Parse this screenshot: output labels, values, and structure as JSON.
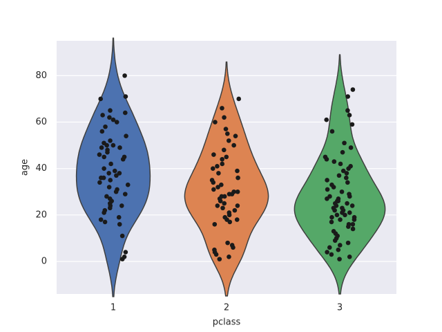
{
  "chart_data": {
    "type": "violin",
    "x_label": "pclass",
    "y_label": "age",
    "categories": [
      "1",
      "2",
      "3"
    ],
    "series": [
      {
        "color": "#4c72b0",
        "values": [
          80,
          71,
          70,
          65,
          64,
          63,
          62,
          61,
          60,
          58,
          56,
          54,
          52,
          51,
          50,
          50,
          49,
          49,
          48,
          47,
          46,
          45,
          45,
          44,
          42,
          40,
          39,
          38,
          38,
          37,
          36,
          36,
          35,
          34,
          33,
          32,
          31,
          30,
          29,
          28,
          27,
          26,
          25,
          24,
          24,
          23,
          22,
          21,
          19,
          18,
          17,
          16,
          11,
          4,
          2,
          1
        ]
      },
      {
        "color": "#dd8452",
        "values": [
          70,
          66,
          62,
          60,
          57,
          55,
          54,
          52,
          50,
          48,
          46,
          45,
          44,
          42,
          41,
          40,
          39,
          38,
          36,
          35,
          34,
          33,
          32,
          31,
          30,
          30,
          29,
          29,
          28,
          28,
          27,
          26,
          25,
          24,
          24,
          23,
          22,
          21,
          20,
          19,
          18,
          18,
          17,
          16,
          8,
          7,
          6,
          5,
          4,
          3,
          2,
          1
        ]
      },
      {
        "color": "#55a868",
        "values": [
          74,
          71,
          65,
          63,
          61,
          59,
          56,
          51,
          49,
          47,
          45,
          44,
          43,
          42,
          41,
          40,
          39,
          38,
          37,
          36,
          35,
          34,
          33,
          32,
          31,
          30,
          29,
          28,
          28,
          27,
          27,
          26,
          26,
          25,
          25,
          24,
          24,
          23,
          23,
          22,
          22,
          21,
          21,
          20,
          20,
          19,
          19,
          18,
          18,
          17,
          16,
          16,
          15,
          14,
          13,
          12,
          11,
          10,
          9,
          8,
          7,
          6,
          5,
          4,
          3,
          2,
          1
        ]
      }
    ],
    "point_color": "#1a1a1a",
    "ylim": [
      -14,
      95
    ],
    "yticks": [
      0,
      20,
      40,
      60,
      80
    ],
    "grid": true
  }
}
